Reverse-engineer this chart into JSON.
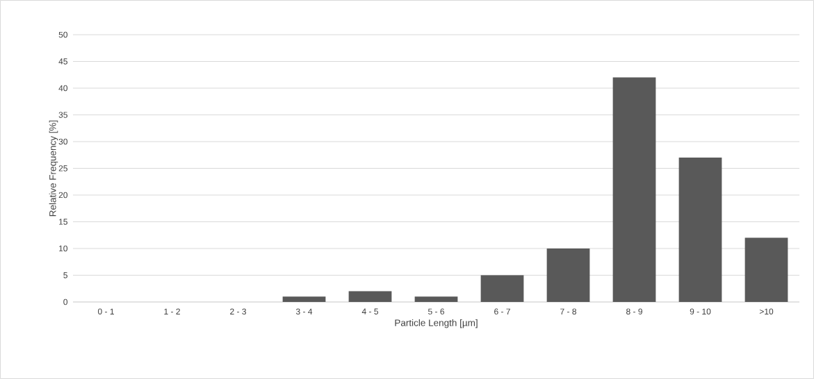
{
  "chart_data": {
    "type": "bar",
    "xlabel": "Particle Length [µm]",
    "ylabel": "Relative Frequency [%]",
    "categories": [
      "0 - 1",
      "1 - 2",
      "2 - 3",
      "3 - 4",
      "4 - 5",
      "5 - 6",
      "6 - 7",
      "7 - 8",
      "8 - 9",
      "9 - 10",
      ">10"
    ],
    "values": [
      0,
      0,
      0,
      1,
      2,
      1,
      5,
      10,
      42,
      27,
      12
    ],
    "color": "#595959",
    "ylim": [
      0,
      50
    ],
    "yticks": [
      0,
      5,
      10,
      15,
      20,
      25,
      30,
      35,
      40,
      45,
      50
    ],
    "grid": "y"
  }
}
